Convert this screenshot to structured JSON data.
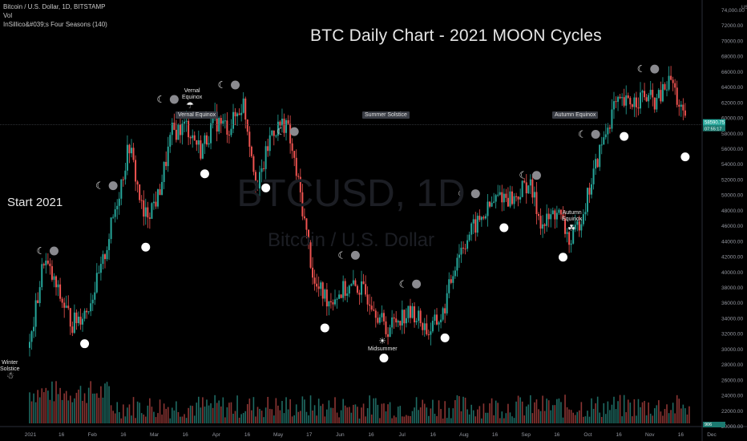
{
  "header": {
    "symbol_line": "Bitcoin / U.S. Dollar, 1D, BITSTAMP",
    "vol_label": "Vol",
    "indicator_line": "InSillico&#039;s Four Seasons (140)"
  },
  "title": "BTC Daily Chart - 2021 MOON Cycles",
  "start_label": "Start 2021",
  "watermark": {
    "symbol": "BTCUSD, 1D",
    "name": "Bitcoin / U.S. Dollar"
  },
  "season_tags": [
    "Vernal Equinox",
    "Summer Solstice",
    "Autumn Equinox"
  ],
  "season_notes": [
    "Winter\nSolstice",
    "Vernal\nEquinox",
    "Midsummer",
    "Autumn\nEquinox"
  ],
  "price_axis": {
    "currency": "USD",
    "labels": [
      "74,000.00",
      "72000.00",
      "70000.00",
      "68000.00",
      "66000.00",
      "64000.00",
      "62000.00",
      "60000.00",
      "58000.00",
      "56000.00",
      "54000.00",
      "52000.00",
      "50000.00",
      "48000.00",
      "46000.00",
      "44000.00",
      "42000.00",
      "40000.00",
      "38000.00",
      "36000.00",
      "34000.00",
      "32000.00",
      "30000.00",
      "28000.00",
      "26000.00",
      "24000.00",
      "22000.00",
      "20000.00"
    ],
    "current_price_label": "58590.75",
    "current_sub_label": "07:55:17",
    "volume_label": "906"
  },
  "time_axis": [
    "2021",
    "16",
    "Feb",
    "16",
    "Mar",
    "16",
    "Apr",
    "16",
    "May",
    "17",
    "Jun",
    "16",
    "Jul",
    "16",
    "Aug",
    "16",
    "Sep",
    "16",
    "Oct",
    "16",
    "Nov",
    "16",
    "Dec"
  ],
  "chart_data": {
    "type": "candlestick",
    "series_name": "BTCUSD",
    "x": [
      "2021-01-01",
      "2021-01-08",
      "2021-01-15",
      "2021-01-22",
      "2021-01-29",
      "2021-02-05",
      "2021-02-12",
      "2021-02-19",
      "2021-02-26",
      "2021-03-05",
      "2021-03-12",
      "2021-03-19",
      "2021-03-26",
      "2021-04-02",
      "2021-04-09",
      "2021-04-16",
      "2021-04-23",
      "2021-04-30",
      "2021-05-07",
      "2021-05-14",
      "2021-05-21",
      "2021-05-28",
      "2021-06-04",
      "2021-06-11",
      "2021-06-18",
      "2021-06-25",
      "2021-07-02",
      "2021-07-09",
      "2021-07-16",
      "2021-07-23",
      "2021-07-30",
      "2021-08-06",
      "2021-08-13",
      "2021-08-20",
      "2021-08-27",
      "2021-09-03",
      "2021-09-10",
      "2021-09-17",
      "2021-09-24",
      "2021-10-01",
      "2021-10-08",
      "2021-10-15",
      "2021-10-22",
      "2021-10-29",
      "2021-11-05",
      "2021-11-12",
      "2021-11-19"
    ],
    "close": [
      29300,
      41000,
      36500,
      32500,
      34300,
      39300,
      47500,
      55900,
      46300,
      49000,
      57500,
      58400,
      55200,
      59000,
      58100,
      61400,
      50100,
      57700,
      58900,
      49300,
      37400,
      35600,
      36800,
      37300,
      35600,
      31600,
      33500,
      33800,
      31400,
      33700,
      41500,
      44600,
      47000,
      49400,
      48800,
      51000,
      45200,
      47300,
      42800,
      48200,
      55000,
      60900,
      61300,
      62200,
      61500,
      64500,
      58500
    ],
    "ylim": [
      19000,
      74000
    ],
    "moon_events": [
      {
        "type": "new",
        "date": "2021-01-13"
      },
      {
        "type": "full",
        "date": "2021-01-28"
      },
      {
        "type": "new",
        "date": "2021-02-11"
      },
      {
        "type": "full",
        "date": "2021-02-27"
      },
      {
        "type": "new",
        "date": "2021-03-13"
      },
      {
        "type": "full",
        "date": "2021-03-28"
      },
      {
        "type": "new",
        "date": "2021-04-12"
      },
      {
        "type": "full",
        "date": "2021-04-27"
      },
      {
        "type": "new",
        "date": "2021-05-11"
      },
      {
        "type": "full",
        "date": "2021-05-26"
      },
      {
        "type": "new",
        "date": "2021-06-10"
      },
      {
        "type": "full",
        "date": "2021-06-24"
      },
      {
        "type": "new",
        "date": "2021-07-10"
      },
      {
        "type": "full",
        "date": "2021-07-24"
      },
      {
        "type": "new",
        "date": "2021-08-08"
      },
      {
        "type": "full",
        "date": "2021-08-22"
      },
      {
        "type": "new",
        "date": "2021-09-07"
      },
      {
        "type": "full",
        "date": "2021-09-20"
      },
      {
        "type": "new",
        "date": "2021-10-06"
      },
      {
        "type": "full",
        "date": "2021-10-20"
      },
      {
        "type": "new",
        "date": "2021-11-04"
      },
      {
        "type": "full",
        "date": "2021-11-19"
      }
    ]
  },
  "colors": {
    "background": "#000000",
    "up": "#26a69a",
    "down": "#ef5350",
    "crosshair": "#4a4d55"
  }
}
